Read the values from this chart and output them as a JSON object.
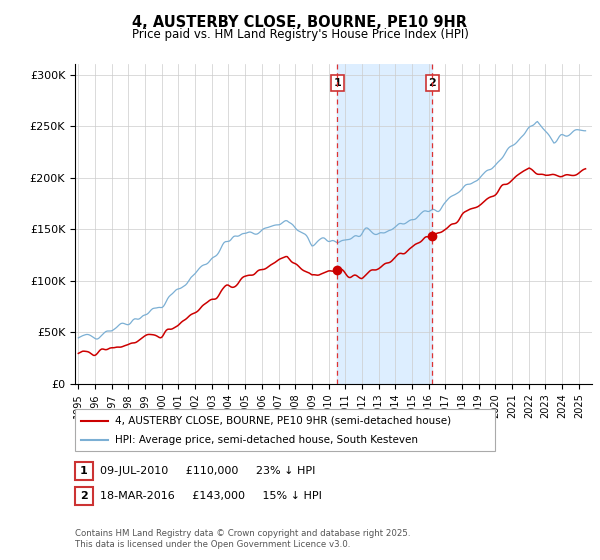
{
  "title": "4, AUSTERBY CLOSE, BOURNE, PE10 9HR",
  "subtitle": "Price paid vs. HM Land Registry's House Price Index (HPI)",
  "hpi_color": "#7bafd4",
  "price_color": "#cc0000",
  "background_color": "#ffffff",
  "grid_color": "#cccccc",
  "shaded_region_color": "#ddeeff",
  "sale1_date_num": 2010.52,
  "sale1_price": 110000,
  "sale2_date_num": 2016.21,
  "sale2_price": 143000,
  "legend_line1": "4, AUSTERBY CLOSE, BOURNE, PE10 9HR (semi-detached house)",
  "legend_line2": "HPI: Average price, semi-detached house, South Kesteven",
  "ann1_box": "1",
  "ann1_date": "09-JUL-2010",
  "ann1_price": "£110,000",
  "ann1_pct": "23% ↓ HPI",
  "ann2_box": "2",
  "ann2_date": "18-MAR-2016",
  "ann2_price": "£143,000",
  "ann2_pct": "15% ↓ HPI",
  "footnote": "Contains HM Land Registry data © Crown copyright and database right 2025.\nThis data is licensed under the Open Government Licence v3.0.",
  "ytick_labels": [
    "£0",
    "£50K",
    "£100K",
    "£150K",
    "£200K",
    "£250K",
    "£300K"
  ],
  "yticks": [
    0,
    50000,
    100000,
    150000,
    200000,
    250000,
    300000
  ],
  "ylim": [
    0,
    310000
  ],
  "xmin": 1994.8,
  "xmax": 2025.8
}
